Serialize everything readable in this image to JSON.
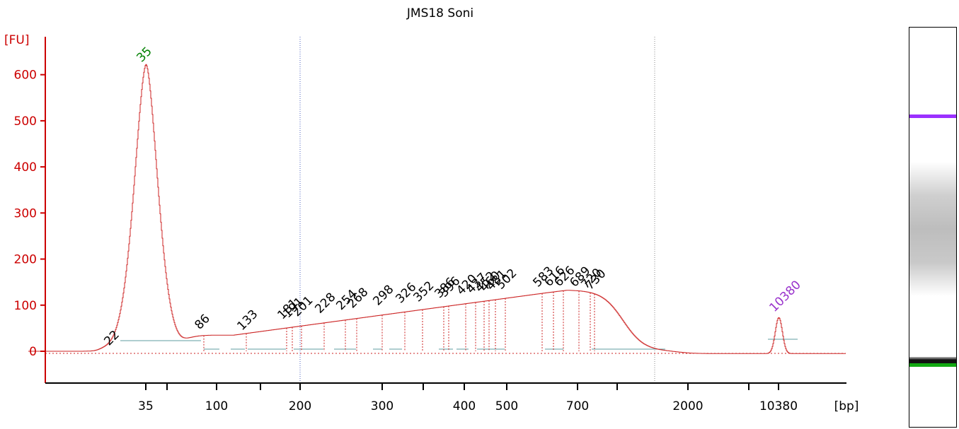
{
  "chart_data": {
    "type": "line",
    "title": "JMS18 Soni",
    "ylabel": "[FU]",
    "xlabel": "[bp]",
    "ylim": [
      -70,
      680
    ],
    "y_ticks": [
      0,
      100,
      200,
      300,
      400,
      500,
      600
    ],
    "x_tick_labels": [
      "35",
      "100",
      "200",
      "300",
      "400",
      "500",
      "700",
      "2000",
      "10380"
    ],
    "series": [
      {
        "x": [
          "22",
          "35",
          "86",
          "133",
          "181",
          "191",
          "201",
          "228",
          "254",
          "268",
          "298",
          "326",
          "352",
          "386",
          "396",
          "420",
          "437",
          "452",
          "460",
          "481",
          "502",
          "583",
          "616",
          "626",
          "689",
          "720",
          "730",
          "10380"
        ],
        "values": [
          5,
          620,
          40,
          38,
          62,
          65,
          68,
          75,
          82,
          86,
          92,
          97,
          100,
          108,
          110,
          115,
          118,
          121,
          122,
          125,
          127,
          132,
          133,
          133,
          132,
          128,
          126,
          78
        ]
      }
    ],
    "peak_labels": [
      {
        "text": "22",
        "color": "#000000"
      },
      {
        "text": "35",
        "color": "#008000"
      },
      {
        "text": "86",
        "color": "#000000"
      },
      {
        "text": "133",
        "color": "#000000"
      },
      {
        "text": "181",
        "color": "#000000"
      },
      {
        "text": "191",
        "color": "#000000"
      },
      {
        "text": "201",
        "color": "#000000"
      },
      {
        "text": "228",
        "color": "#000000"
      },
      {
        "text": "254",
        "color": "#000000"
      },
      {
        "text": "268",
        "color": "#000000"
      },
      {
        "text": "298",
        "color": "#000000"
      },
      {
        "text": "326",
        "color": "#000000"
      },
      {
        "text": "352",
        "color": "#000000"
      },
      {
        "text": "386",
        "color": "#000000"
      },
      {
        "text": "396",
        "color": "#000000"
      },
      {
        "text": "420",
        "color": "#000000"
      },
      {
        "text": "437",
        "color": "#000000"
      },
      {
        "text": "452",
        "color": "#000000"
      },
      {
        "text": "460",
        "color": "#000000"
      },
      {
        "text": "481",
        "color": "#000000"
      },
      {
        "text": "502",
        "color": "#000000"
      },
      {
        "text": "583",
        "color": "#000000"
      },
      {
        "text": "616",
        "color": "#000000"
      },
      {
        "text": "626",
        "color": "#000000"
      },
      {
        "text": "689",
        "color": "#000000"
      },
      {
        "text": "720",
        "color": "#000000"
      },
      {
        "text": "730",
        "color": "#000000"
      },
      {
        "text": "10380",
        "color": "#9932cc"
      }
    ],
    "colors": {
      "axis": "#cc0000",
      "trace": "#cc2222",
      "baseline": "#5f9ea0",
      "lower_marker": "#008000",
      "upper_marker": "#9932cc"
    },
    "grid": false
  }
}
